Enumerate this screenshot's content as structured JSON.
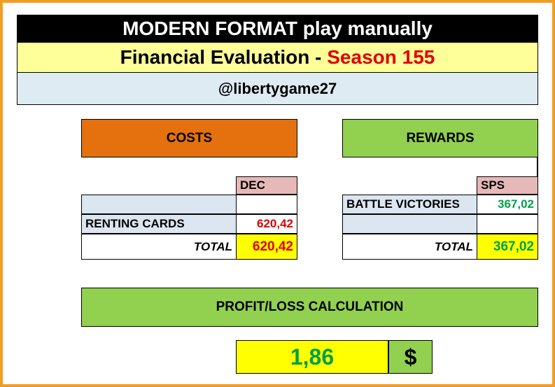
{
  "header": {
    "title": "MODERN FORMAT play manually",
    "subtitle_prefix": "Financial Evaluation - ",
    "subtitle_season": "Season 155",
    "username": "@libertygame27"
  },
  "costs": {
    "header": "COSTS",
    "currency_label": "DEC",
    "rows": [
      {
        "label": "",
        "value": ""
      },
      {
        "label": "RENTING CARDS",
        "value": "620,42"
      }
    ],
    "total_label": "TOTAL",
    "total_value": "620,42"
  },
  "rewards": {
    "header": "REWARDS",
    "currency_label": "SPS",
    "rows": [
      {
        "label": "BATTLE VICTORIES",
        "value": "367,02"
      },
      {
        "label": "",
        "value": ""
      }
    ],
    "total_label": "TOTAL",
    "total_value": "367,02"
  },
  "profit": {
    "header": "PROFIT/LOSS CALCULATION",
    "value": "1,86",
    "currency_symbol": "$"
  },
  "colors": {
    "border_orange": "#f29d26",
    "costs_orange": "#e4710e",
    "rewards_green": "#92d050",
    "cost_value_red": "#e00000",
    "reward_value_green": "#00a04a",
    "total_yellow": "#ffff00"
  }
}
